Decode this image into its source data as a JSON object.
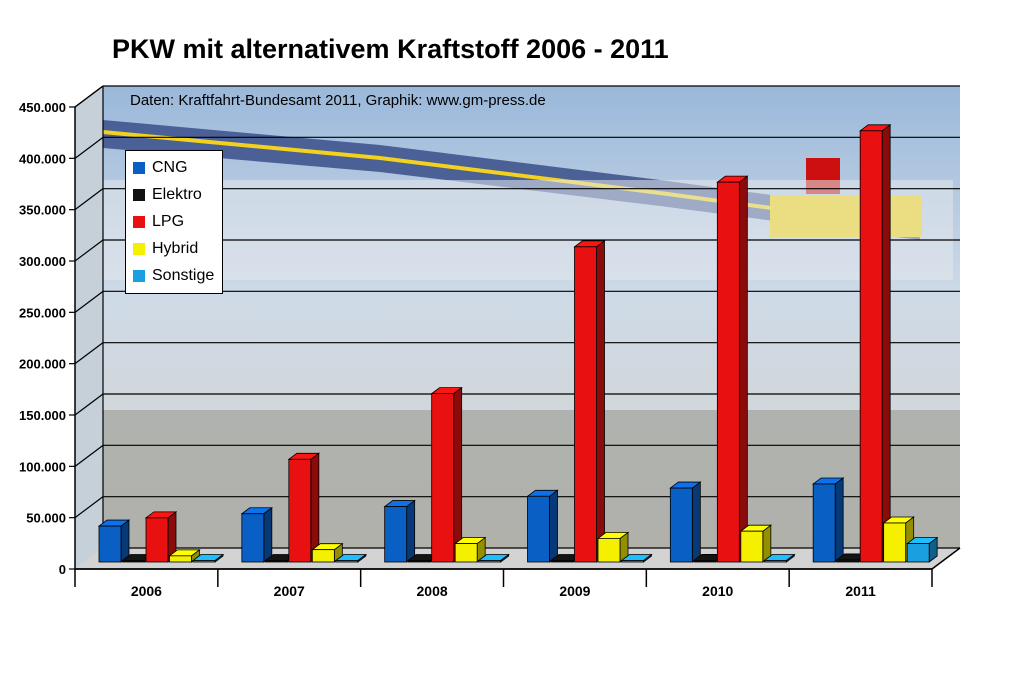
{
  "chart_data": {
    "type": "bar",
    "title": "PKW mit alternativem Kraftstoff 2006 - 2011",
    "subtitle": "Daten: Kraftfahrt-Bundesamt 2011, Graphik: www.gm-press.de",
    "categories": [
      "2006",
      "2007",
      "2008",
      "2009",
      "2010",
      "2011"
    ],
    "series": [
      {
        "name": "CNG",
        "color": "#0a5fc4",
        "values": [
          35000,
          47000,
          54000,
          64000,
          72000,
          76000
        ]
      },
      {
        "name": "Elektro",
        "color": "#111111",
        "values": [
          1000,
          1000,
          1000,
          1000,
          1500,
          2000
        ]
      },
      {
        "name": "LPG",
        "color": "#e81010",
        "values": [
          43000,
          100000,
          164000,
          307000,
          370000,
          420000
        ]
      },
      {
        "name": "Hybrid",
        "color": "#f5f000",
        "values": [
          6000,
          12000,
          18000,
          23000,
          30000,
          38000
        ]
      },
      {
        "name": "Sonstige",
        "color": "#1a9fe0",
        "values": [
          500,
          500,
          500,
          500,
          500,
          18000
        ]
      }
    ],
    "y_ticks": [
      "0",
      "50.000",
      "100.000",
      "150.000",
      "200.000",
      "250.000",
      "300.000",
      "350.000",
      "400.000",
      "450.000"
    ],
    "ylim": [
      0,
      450000
    ],
    "grid": true,
    "legend": "top-left"
  }
}
